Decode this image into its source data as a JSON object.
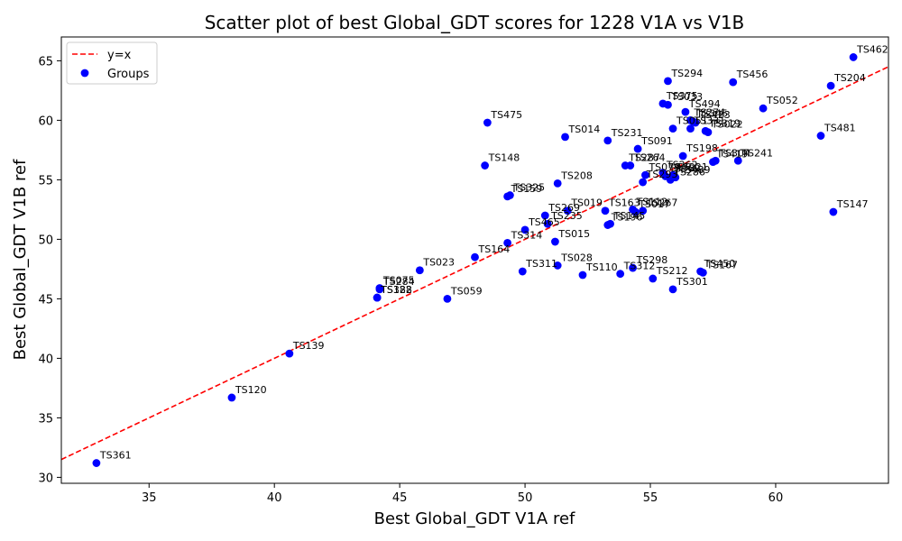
{
  "chart_data": {
    "type": "scatter",
    "title": "Scatter plot of best Global_GDT scores for 1228 V1A vs V1B",
    "xlabel": "Best Global_GDT V1A ref",
    "ylabel": "Best Global_GDT V1B ref",
    "xlim": [
      31.5,
      64.5
    ],
    "ylim": [
      29.5,
      67
    ],
    "xticks": [
      35,
      40,
      45,
      50,
      55,
      60
    ],
    "yticks": [
      30,
      35,
      40,
      45,
      50,
      55,
      60,
      65
    ],
    "grid": false,
    "legend_position": "top-left",
    "legend": [
      {
        "label": "y=x",
        "kind": "line",
        "color": "#ff0000",
        "dash": true
      },
      {
        "label": "Groups",
        "kind": "marker",
        "color": "#0000ff"
      }
    ],
    "reference_line": {
      "label": "y=x",
      "color": "#ff0000"
    },
    "series": [
      {
        "name": "Groups",
        "color": "#0000ff",
        "points": [
          {
            "label": "TS462",
            "x": 63.1,
            "y": 65.3
          },
          {
            "label": "TS204",
            "x": 62.2,
            "y": 62.9
          },
          {
            "label": "TS481",
            "x": 61.8,
            "y": 58.7
          },
          {
            "label": "TS147",
            "x": 62.3,
            "y": 52.3
          },
          {
            "label": "TS456",
            "x": 58.3,
            "y": 63.2
          },
          {
            "label": "TS294",
            "x": 55.7,
            "y": 63.3
          },
          {
            "label": "TS494",
            "x": 56.4,
            "y": 60.7
          },
          {
            "label": "TS375",
            "x": 55.5,
            "y": 61.4
          },
          {
            "label": "TS033",
            "x": 55.7,
            "y": 61.3
          },
          {
            "label": "TS274",
            "x": 56.6,
            "y": 60.0
          },
          {
            "label": "TS052",
            "x": 59.5,
            "y": 61.0
          },
          {
            "label": "TS331",
            "x": 56.6,
            "y": 59.3
          },
          {
            "label": "TS051",
            "x": 55.9,
            "y": 59.3
          },
          {
            "label": "TS345",
            "x": 56.7,
            "y": 59.9
          },
          {
            "label": "TS423",
            "x": 56.8,
            "y": 59.8
          },
          {
            "label": "TS319",
            "x": 57.2,
            "y": 59.1
          },
          {
            "label": "TS022",
            "x": 57.3,
            "y": 59.0
          },
          {
            "label": "TS231",
            "x": 53.3,
            "y": 58.3
          },
          {
            "label": "TS014",
            "x": 51.6,
            "y": 58.6
          },
          {
            "label": "TS475",
            "x": 48.5,
            "y": 59.8
          },
          {
            "label": "TS091",
            "x": 54.5,
            "y": 57.6
          },
          {
            "label": "TS264",
            "x": 54.2,
            "y": 56.2
          },
          {
            "label": "TS198",
            "x": 56.3,
            "y": 57.0
          },
          {
            "label": "TS419",
            "x": 57.5,
            "y": 56.5
          },
          {
            "label": "TS241",
            "x": 58.5,
            "y": 56.6
          },
          {
            "label": "TS304",
            "x": 57.6,
            "y": 56.6
          },
          {
            "label": "TS287",
            "x": 54.0,
            "y": 56.2
          },
          {
            "label": "TS079",
            "x": 54.8,
            "y": 55.4
          },
          {
            "label": "TS262",
            "x": 55.5,
            "y": 55.6
          },
          {
            "label": "TS293",
            "x": 54.7,
            "y": 54.8
          },
          {
            "label": "TS221",
            "x": 55.9,
            "y": 55.4
          },
          {
            "label": "TS369",
            "x": 55.6,
            "y": 55.3
          },
          {
            "label": "TS489",
            "x": 56.0,
            "y": 55.2
          },
          {
            "label": "TS286",
            "x": 55.8,
            "y": 55.0
          },
          {
            "label": "TS148",
            "x": 48.4,
            "y": 56.2
          },
          {
            "label": "TS325",
            "x": 49.4,
            "y": 53.7
          },
          {
            "label": "TS159",
            "x": 49.3,
            "y": 53.6
          },
          {
            "label": "TS208",
            "x": 51.3,
            "y": 54.7
          },
          {
            "label": "TS163",
            "x": 53.2,
            "y": 52.4
          },
          {
            "label": "TS019",
            "x": 51.7,
            "y": 52.4
          },
          {
            "label": "TS269",
            "x": 50.8,
            "y": 52.0
          },
          {
            "label": "TS112",
            "x": 54.3,
            "y": 52.5
          },
          {
            "label": "TS017",
            "x": 54.4,
            "y": 52.3
          },
          {
            "label": "TS267",
            "x": 54.7,
            "y": 52.4
          },
          {
            "label": "TS145",
            "x": 53.4,
            "y": 51.3
          },
          {
            "label": "TS196",
            "x": 53.3,
            "y": 51.2
          },
          {
            "label": "TS235",
            "x": 50.9,
            "y": 51.3
          },
          {
            "label": "TS465",
            "x": 50.0,
            "y": 50.8
          },
          {
            "label": "TS314",
            "x": 49.3,
            "y": 49.7
          },
          {
            "label": "TS015",
            "x": 51.2,
            "y": 49.8
          },
          {
            "label": "TS164",
            "x": 48.0,
            "y": 48.5
          },
          {
            "label": "TS028",
            "x": 51.3,
            "y": 47.8
          },
          {
            "label": "TS311",
            "x": 49.9,
            "y": 47.3
          },
          {
            "label": "TS110",
            "x": 52.3,
            "y": 47.0
          },
          {
            "label": "TS298",
            "x": 54.3,
            "y": 47.6
          },
          {
            "label": "TS312",
            "x": 53.8,
            "y": 47.1
          },
          {
            "label": "TS212",
            "x": 55.1,
            "y": 46.7
          },
          {
            "label": "TS167",
            "x": 57.1,
            "y": 47.2
          },
          {
            "label": "TS450",
            "x": 57.0,
            "y": 47.3
          },
          {
            "label": "TS301",
            "x": 55.9,
            "y": 45.8
          },
          {
            "label": "TS284",
            "x": 44.2,
            "y": 45.8
          },
          {
            "label": "TS023",
            "x": 45.8,
            "y": 47.4
          },
          {
            "label": "TS122",
            "x": 44.1,
            "y": 45.1
          },
          {
            "label": "TS075",
            "x": 44.2,
            "y": 45.9
          },
          {
            "label": "TS388",
            "x": 44.1,
            "y": 45.1
          },
          {
            "label": "TS059",
            "x": 46.9,
            "y": 45.0
          },
          {
            "label": "TS139",
            "x": 40.6,
            "y": 40.4
          },
          {
            "label": "TS120",
            "x": 38.3,
            "y": 36.7
          },
          {
            "label": "TS361",
            "x": 32.9,
            "y": 31.2
          }
        ]
      }
    ]
  }
}
